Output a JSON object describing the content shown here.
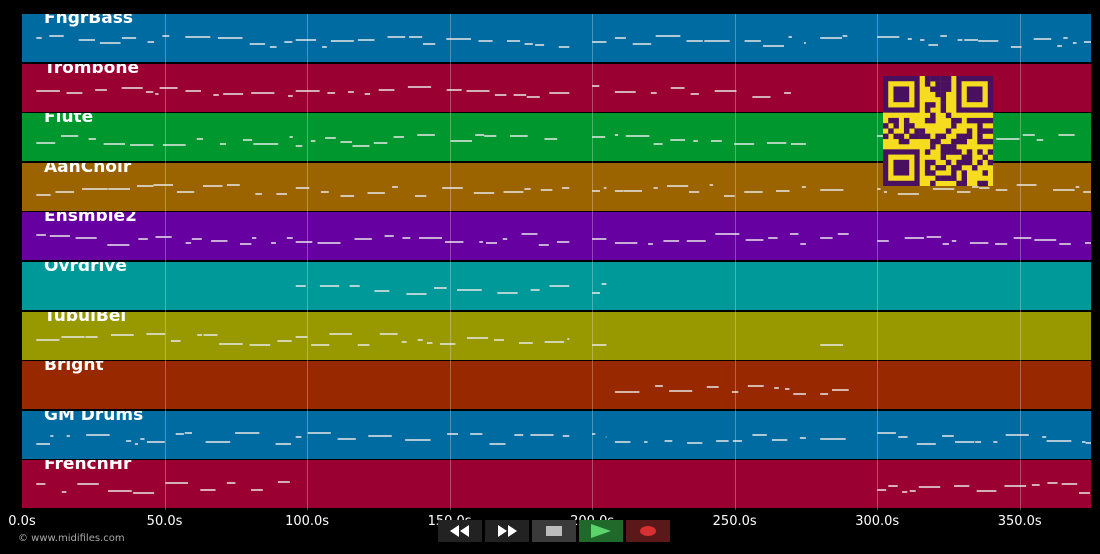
{
  "tracks": [
    {
      "name": "FngrBass",
      "color": "#006ba0"
    },
    {
      "name": "Trombone",
      "color": "#9b0032"
    },
    {
      "name": "Flute",
      "color": "#00982e"
    },
    {
      "name": "AahChoir",
      "color": "#9b6400"
    },
    {
      "name": "Ensmble2",
      "color": "#6600a0"
    },
    {
      "name": "Ovrdrive",
      "color": "#009999"
    },
    {
      "name": "TubulBel",
      "color": "#989800"
    },
    {
      "name": "Bright",
      "color": "#982800"
    },
    {
      "name": "GM Drums",
      "color": "#006ba0"
    },
    {
      "name": "FrenchHr",
      "color": "#9b0032"
    }
  ],
  "timeline": {
    "ticks": [
      "0.0s",
      "50.0s",
      "100.0s",
      "150.0s",
      "200.0s",
      "250.0s",
      "300.0s",
      "350.0s"
    ],
    "range_seconds": [
      0,
      375
    ]
  },
  "controls": {
    "rewind_icon": "rewind-icon",
    "fast_forward_icon": "fast-forward-icon",
    "stop_icon": "stop-icon",
    "play_icon": "play-icon",
    "record_icon": "record-icon"
  },
  "footer": {
    "copyright": "© www.midifiles.com"
  },
  "qr_color": "#f5dc1e"
}
